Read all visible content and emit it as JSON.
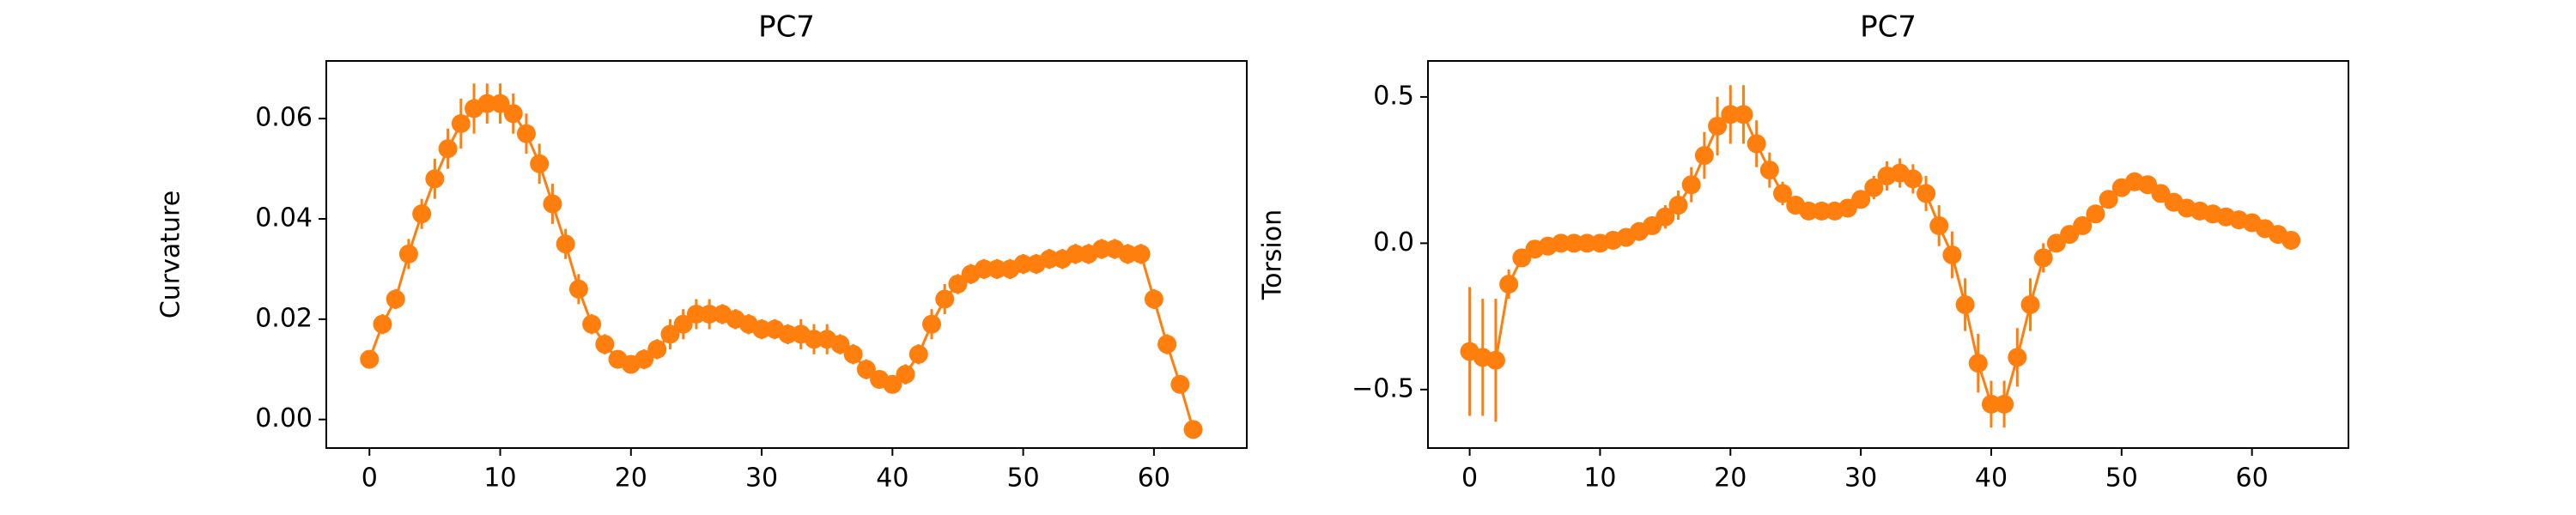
{
  "chart_data": [
    {
      "type": "errorbar",
      "title": "PC7",
      "ylabel": "Curvature",
      "color": "#ff7f0e",
      "x": [
        0,
        1,
        2,
        3,
        4,
        5,
        6,
        7,
        8,
        9,
        10,
        11,
        12,
        13,
        14,
        15,
        16,
        17,
        18,
        19,
        20,
        21,
        22,
        23,
        24,
        25,
        26,
        27,
        28,
        29,
        30,
        31,
        32,
        33,
        34,
        35,
        36,
        37,
        38,
        39,
        40,
        41,
        42,
        43,
        44,
        45,
        46,
        47,
        48,
        49,
        50,
        51,
        52,
        53,
        54,
        55,
        56,
        57,
        58,
        59,
        60,
        61,
        62,
        63
      ],
      "values": [
        0.012,
        0.019,
        0.024,
        0.033,
        0.041,
        0.048,
        0.054,
        0.059,
        0.062,
        0.063,
        0.063,
        0.061,
        0.057,
        0.051,
        0.043,
        0.035,
        0.026,
        0.019,
        0.015,
        0.012,
        0.011,
        0.012,
        0.014,
        0.017,
        0.019,
        0.021,
        0.021,
        0.021,
        0.02,
        0.019,
        0.018,
        0.018,
        0.017,
        0.017,
        0.016,
        0.016,
        0.015,
        0.013,
        0.01,
        0.008,
        0.007,
        0.009,
        0.013,
        0.019,
        0.024,
        0.027,
        0.029,
        0.03,
        0.03,
        0.03,
        0.031,
        0.031,
        0.032,
        0.032,
        0.033,
        0.033,
        0.034,
        0.034,
        0.033,
        0.033,
        0.024,
        0.015,
        0.007,
        -0.002
      ],
      "errors": [
        0.001,
        0.002,
        0.002,
        0.003,
        0.003,
        0.004,
        0.004,
        0.005,
        0.005,
        0.004,
        0.004,
        0.004,
        0.004,
        0.004,
        0.004,
        0.003,
        0.003,
        0.002,
        0.002,
        0.001,
        0.001,
        0.002,
        0.002,
        0.003,
        0.003,
        0.003,
        0.003,
        0.002,
        0.002,
        0.002,
        0.002,
        0.002,
        0.002,
        0.003,
        0.003,
        0.003,
        0.002,
        0.002,
        0.002,
        0.001,
        0.001,
        0.002,
        0.002,
        0.003,
        0.003,
        0.002,
        0.002,
        0.002,
        0.002,
        0.002,
        0.002,
        0.002,
        0.002,
        0.002,
        0.002,
        0.002,
        0.002,
        0.002,
        0.002,
        0.002,
        0.002,
        0.002,
        0.001,
        0.001
      ],
      "xlim": [
        -3.3,
        67.1
      ],
      "ylim": [
        -0.0057,
        0.0715
      ],
      "xticks": [
        0,
        10,
        20,
        30,
        40,
        50,
        60
      ],
      "yticks": [
        {
          "value": 0,
          "label": "0.00"
        },
        {
          "value": 0.02,
          "label": "0.02"
        },
        {
          "value": 0.04,
          "label": "0.04"
        },
        {
          "value": 0.06,
          "label": "0.06"
        }
      ]
    },
    {
      "type": "errorbar",
      "title": "PC7",
      "ylabel": "Torsion",
      "color": "#ff7f0e",
      "x": [
        0,
        1,
        2,
        3,
        4,
        5,
        6,
        7,
        8,
        9,
        10,
        11,
        12,
        13,
        14,
        15,
        16,
        17,
        18,
        19,
        20,
        21,
        22,
        23,
        24,
        25,
        26,
        27,
        28,
        29,
        30,
        31,
        32,
        33,
        34,
        35,
        36,
        37,
        38,
        39,
        40,
        41,
        42,
        43,
        44,
        45,
        46,
        47,
        48,
        49,
        50,
        51,
        52,
        53,
        54,
        55,
        56,
        57,
        58,
        59,
        60,
        61,
        62,
        63
      ],
      "values": [
        -0.37,
        -0.39,
        -0.4,
        -0.14,
        -0.05,
        -0.02,
        -0.01,
        0.0,
        0.0,
        0.0,
        0.0,
        0.01,
        0.02,
        0.04,
        0.06,
        0.09,
        0.13,
        0.2,
        0.3,
        0.4,
        0.44,
        0.44,
        0.34,
        0.25,
        0.17,
        0.13,
        0.11,
        0.11,
        0.11,
        0.12,
        0.15,
        0.19,
        0.23,
        0.24,
        0.22,
        0.17,
        0.06,
        -0.04,
        -0.21,
        -0.41,
        -0.55,
        -0.55,
        -0.39,
        -0.21,
        -0.05,
        0.0,
        0.03,
        0.06,
        0.1,
        0.15,
        0.19,
        0.21,
        0.2,
        0.17,
        0.14,
        0.12,
        0.11,
        0.1,
        0.09,
        0.08,
        0.07,
        0.05,
        0.03,
        0.01
      ],
      "errors": [
        0.22,
        0.2,
        0.21,
        0.05,
        0.02,
        0.02,
        0.02,
        0.02,
        0.02,
        0.02,
        0.02,
        0.02,
        0.02,
        0.02,
        0.03,
        0.04,
        0.05,
        0.06,
        0.08,
        0.1,
        0.1,
        0.1,
        0.08,
        0.06,
        0.04,
        0.03,
        0.02,
        0.02,
        0.02,
        0.02,
        0.03,
        0.04,
        0.05,
        0.05,
        0.05,
        0.06,
        0.07,
        0.08,
        0.09,
        0.1,
        0.08,
        0.08,
        0.1,
        0.09,
        0.05,
        0.03,
        0.02,
        0.02,
        0.02,
        0.02,
        0.02,
        0.02,
        0.02,
        0.02,
        0.02,
        0.02,
        0.02,
        0.02,
        0.02,
        0.02,
        0.02,
        0.02,
        0.02,
        0.02
      ],
      "xlim": [
        -3.2,
        67.4
      ],
      "ylim": [
        -0.7,
        0.623
      ],
      "xticks": [
        0,
        10,
        20,
        30,
        40,
        50,
        60
      ],
      "yticks": [
        {
          "value": -0.5,
          "label": "−0.5"
        },
        {
          "value": 0,
          "label": "0.0"
        },
        {
          "value": 0.5,
          "label": "0.5"
        }
      ]
    }
  ]
}
